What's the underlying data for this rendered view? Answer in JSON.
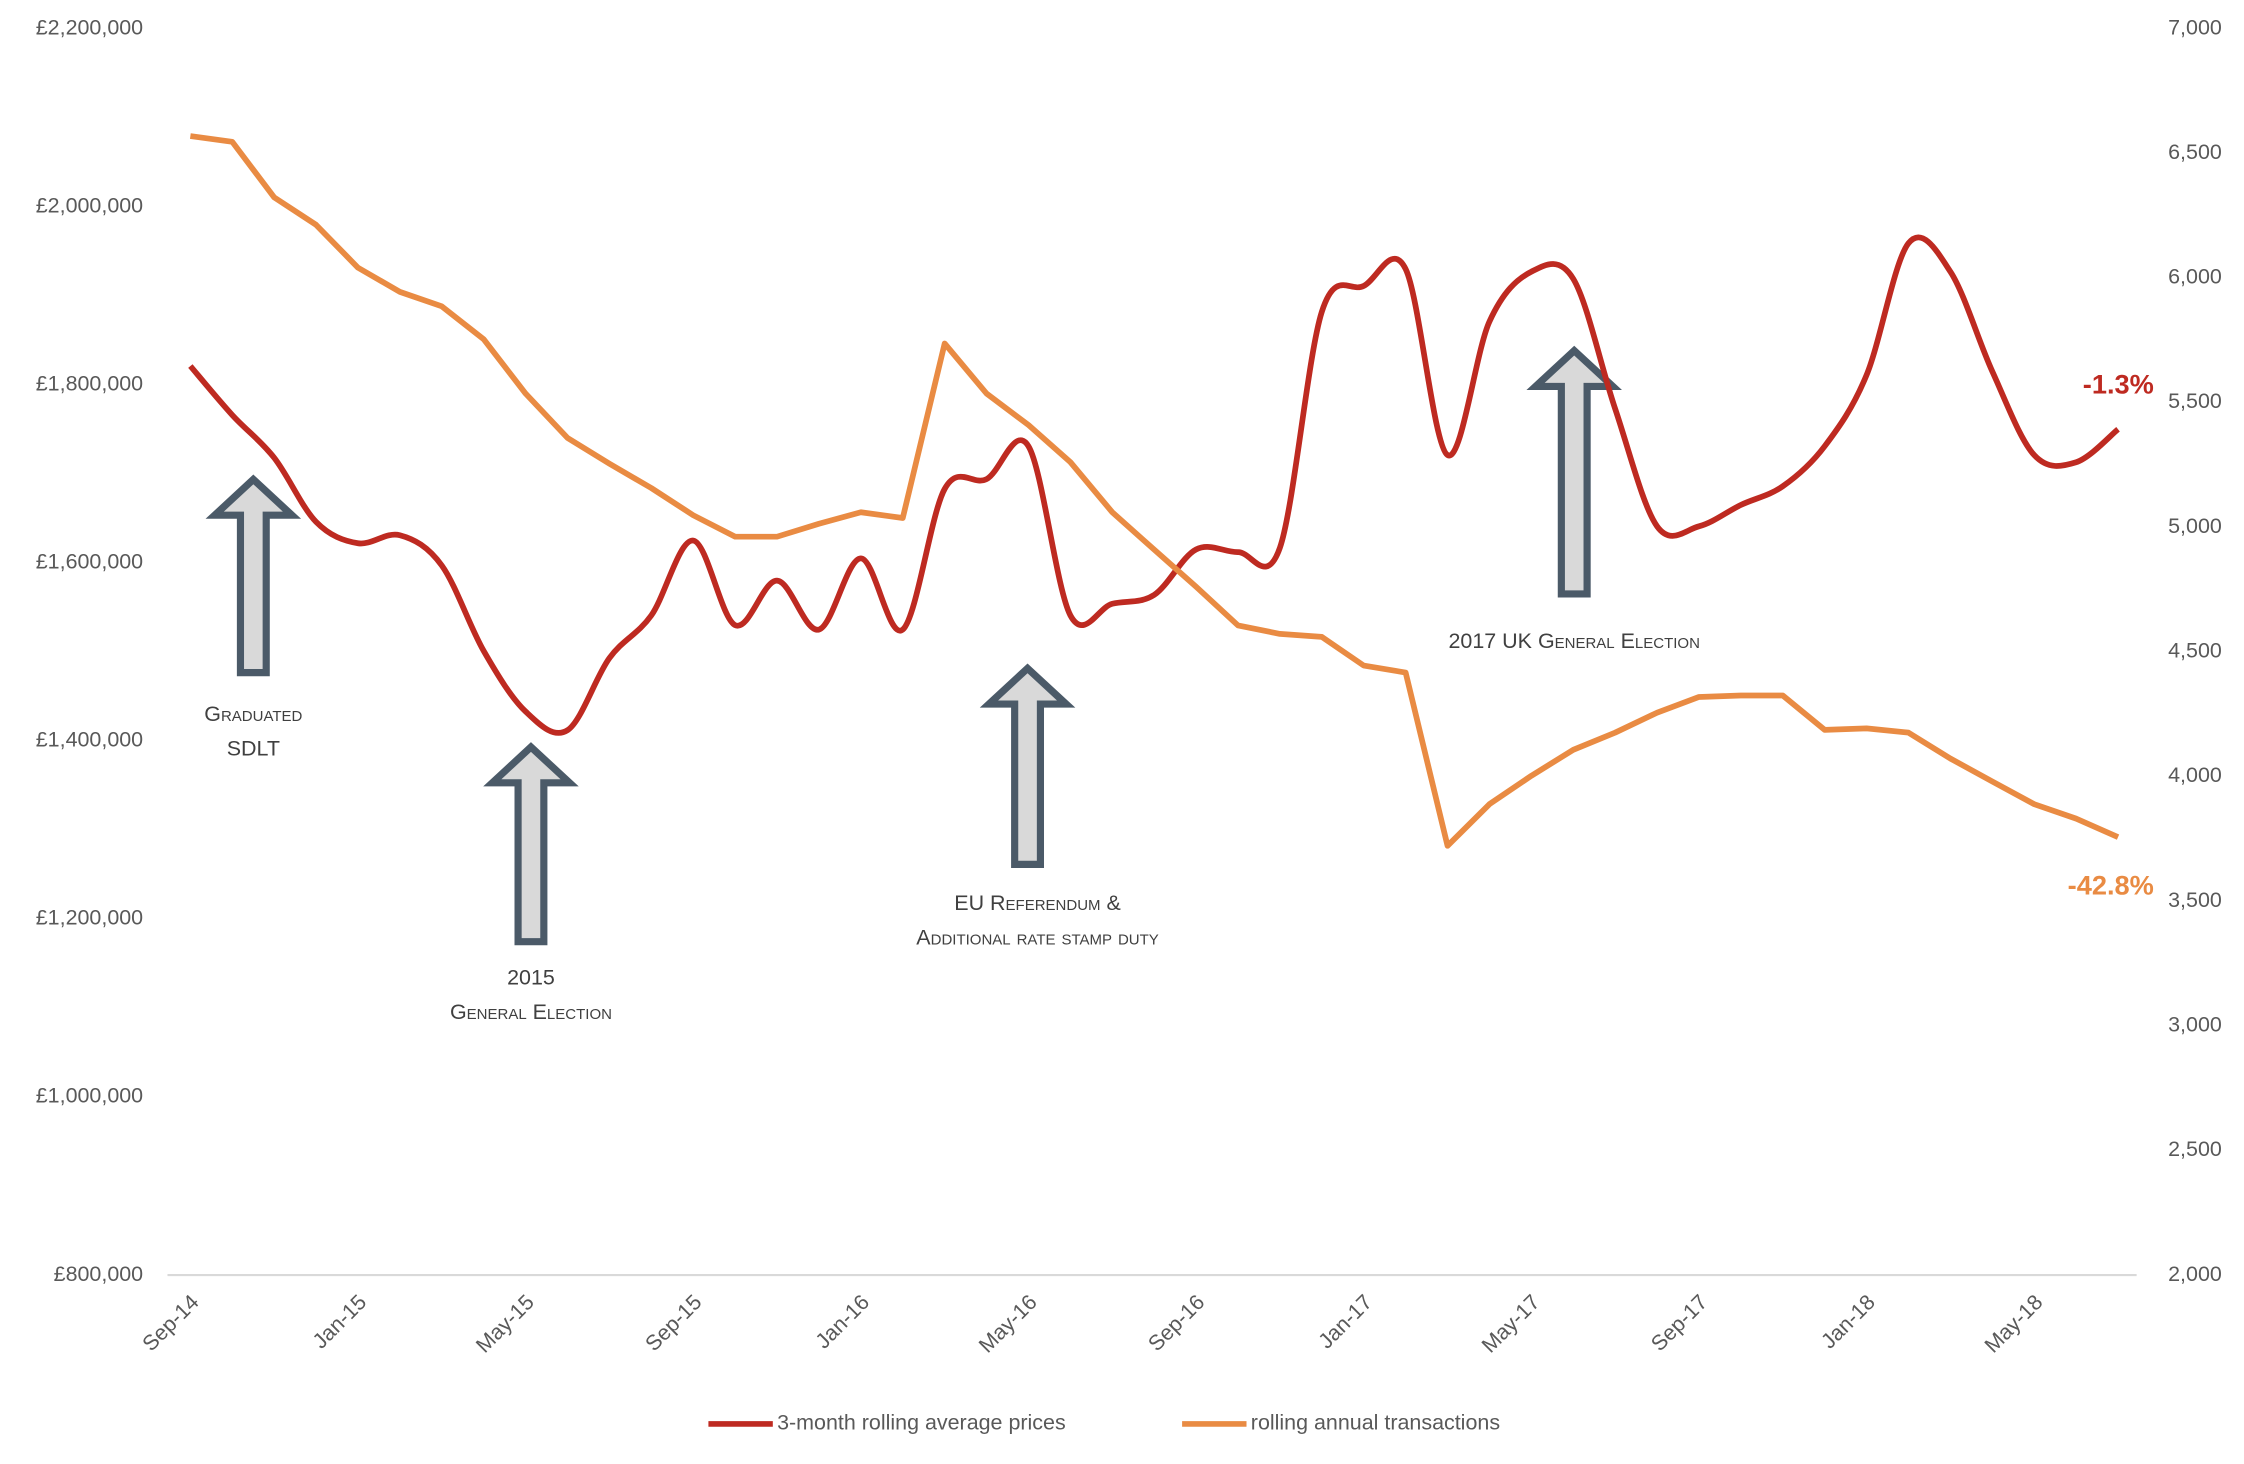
{
  "chart_data": {
    "type": "line",
    "categories": [
      "Sep-14",
      null,
      null,
      null,
      "Jan-15",
      null,
      null,
      null,
      "May-15",
      null,
      null,
      null,
      "Sep-15",
      null,
      null,
      null,
      "Jan-16",
      null,
      null,
      null,
      "May-16",
      null,
      null,
      null,
      "Sep-16",
      null,
      null,
      null,
      "Jan-17",
      null,
      null,
      null,
      "May-17",
      null,
      null,
      null,
      "Sep-17",
      null,
      null,
      null,
      "Jan-18",
      null,
      null,
      null,
      "May-18",
      null,
      null
    ],
    "series": [
      {
        "name": "3-month rolling average prices",
        "color": "#be2a21",
        "smooth": true,
        "values": [
          1821000,
          1766000,
          1718000,
          1646000,
          1622000,
          1631000,
          1597000,
          1501000,
          1433000,
          1412000,
          1493000,
          1541000,
          1625000,
          1530000,
          1580000,
          1525000,
          1605000,
          1525000,
          1683000,
          1694000,
          1731000,
          1541000,
          1554000,
          1564000,
          1615000,
          1612000,
          1617000,
          1882000,
          1911000,
          1930000,
          1721000,
          1871000,
          1927000,
          1919000,
          1773000,
          1641000,
          1641000,
          1665000,
          1686000,
          1731000,
          1811000,
          1959000,
          1927000,
          1815000,
          1721000,
          1713000,
          1750000
        ]
      },
      {
        "name": "rolling annual transactions",
        "color": "#e98b43",
        "axis": "y2",
        "smooth": false,
        "values": [
          6569,
          6546,
          6323,
          6213,
          6041,
          5944,
          5886,
          5754,
          5536,
          5358,
          5255,
          5157,
          5048,
          4962,
          4962,
          5014,
          5060,
          5037,
          5737,
          5536,
          5410,
          5261,
          5060,
          4910,
          4761,
          4606,
          4572,
          4560,
          4445,
          4417,
          3722,
          3889,
          4003,
          4107,
          4176,
          4256,
          4319,
          4325,
          4325,
          4187,
          4193,
          4176,
          4072,
          3980,
          3889,
          3831,
          3757
        ]
      }
    ],
    "ylim": [
      800000,
      2200000
    ],
    "yticks": [
      {
        "value": 800000,
        "label": "£800,000"
      },
      {
        "value": 1000000,
        "label": "£1,000,000"
      },
      {
        "value": 1200000,
        "label": "£1,200,000"
      },
      {
        "value": 1400000,
        "label": "£1,400,000"
      },
      {
        "value": 1600000,
        "label": "£1,600,000"
      },
      {
        "value": 1800000,
        "label": "£1,800,000"
      },
      {
        "value": 2000000,
        "label": "£2,000,000"
      },
      {
        "value": 2200000,
        "label": "£2,200,000"
      }
    ],
    "y2lim": [
      2000,
      7000
    ],
    "y2ticks": [
      {
        "value": 2000,
        "label": "2,000"
      },
      {
        "value": 2500,
        "label": "2,500"
      },
      {
        "value": 3000,
        "label": "3,000"
      },
      {
        "value": 3500,
        "label": "3,500"
      },
      {
        "value": 4000,
        "label": "4,000"
      },
      {
        "value": 4500,
        "label": "4,500"
      },
      {
        "value": 5000,
        "label": "5,000"
      },
      {
        "value": 5500,
        "label": "5,500"
      },
      {
        "value": 6000,
        "label": "6,000"
      },
      {
        "value": 6500,
        "label": "6,500"
      },
      {
        "value": 7000,
        "label": "7,000"
      }
    ],
    "grid": false,
    "legend": "bottom",
    "annotations": [
      {
        "lines": [
          "Graduated",
          "SDLT"
        ]
      },
      {
        "lines": [
          "2015",
          "General Election"
        ]
      },
      {
        "lines": [
          "EU Referendum &",
          "Additional rate stamp duty"
        ]
      },
      {
        "lines": [
          "2017 UK General Election"
        ]
      }
    ],
    "end_labels": [
      "-1.3%",
      "-42.8%"
    ]
  }
}
